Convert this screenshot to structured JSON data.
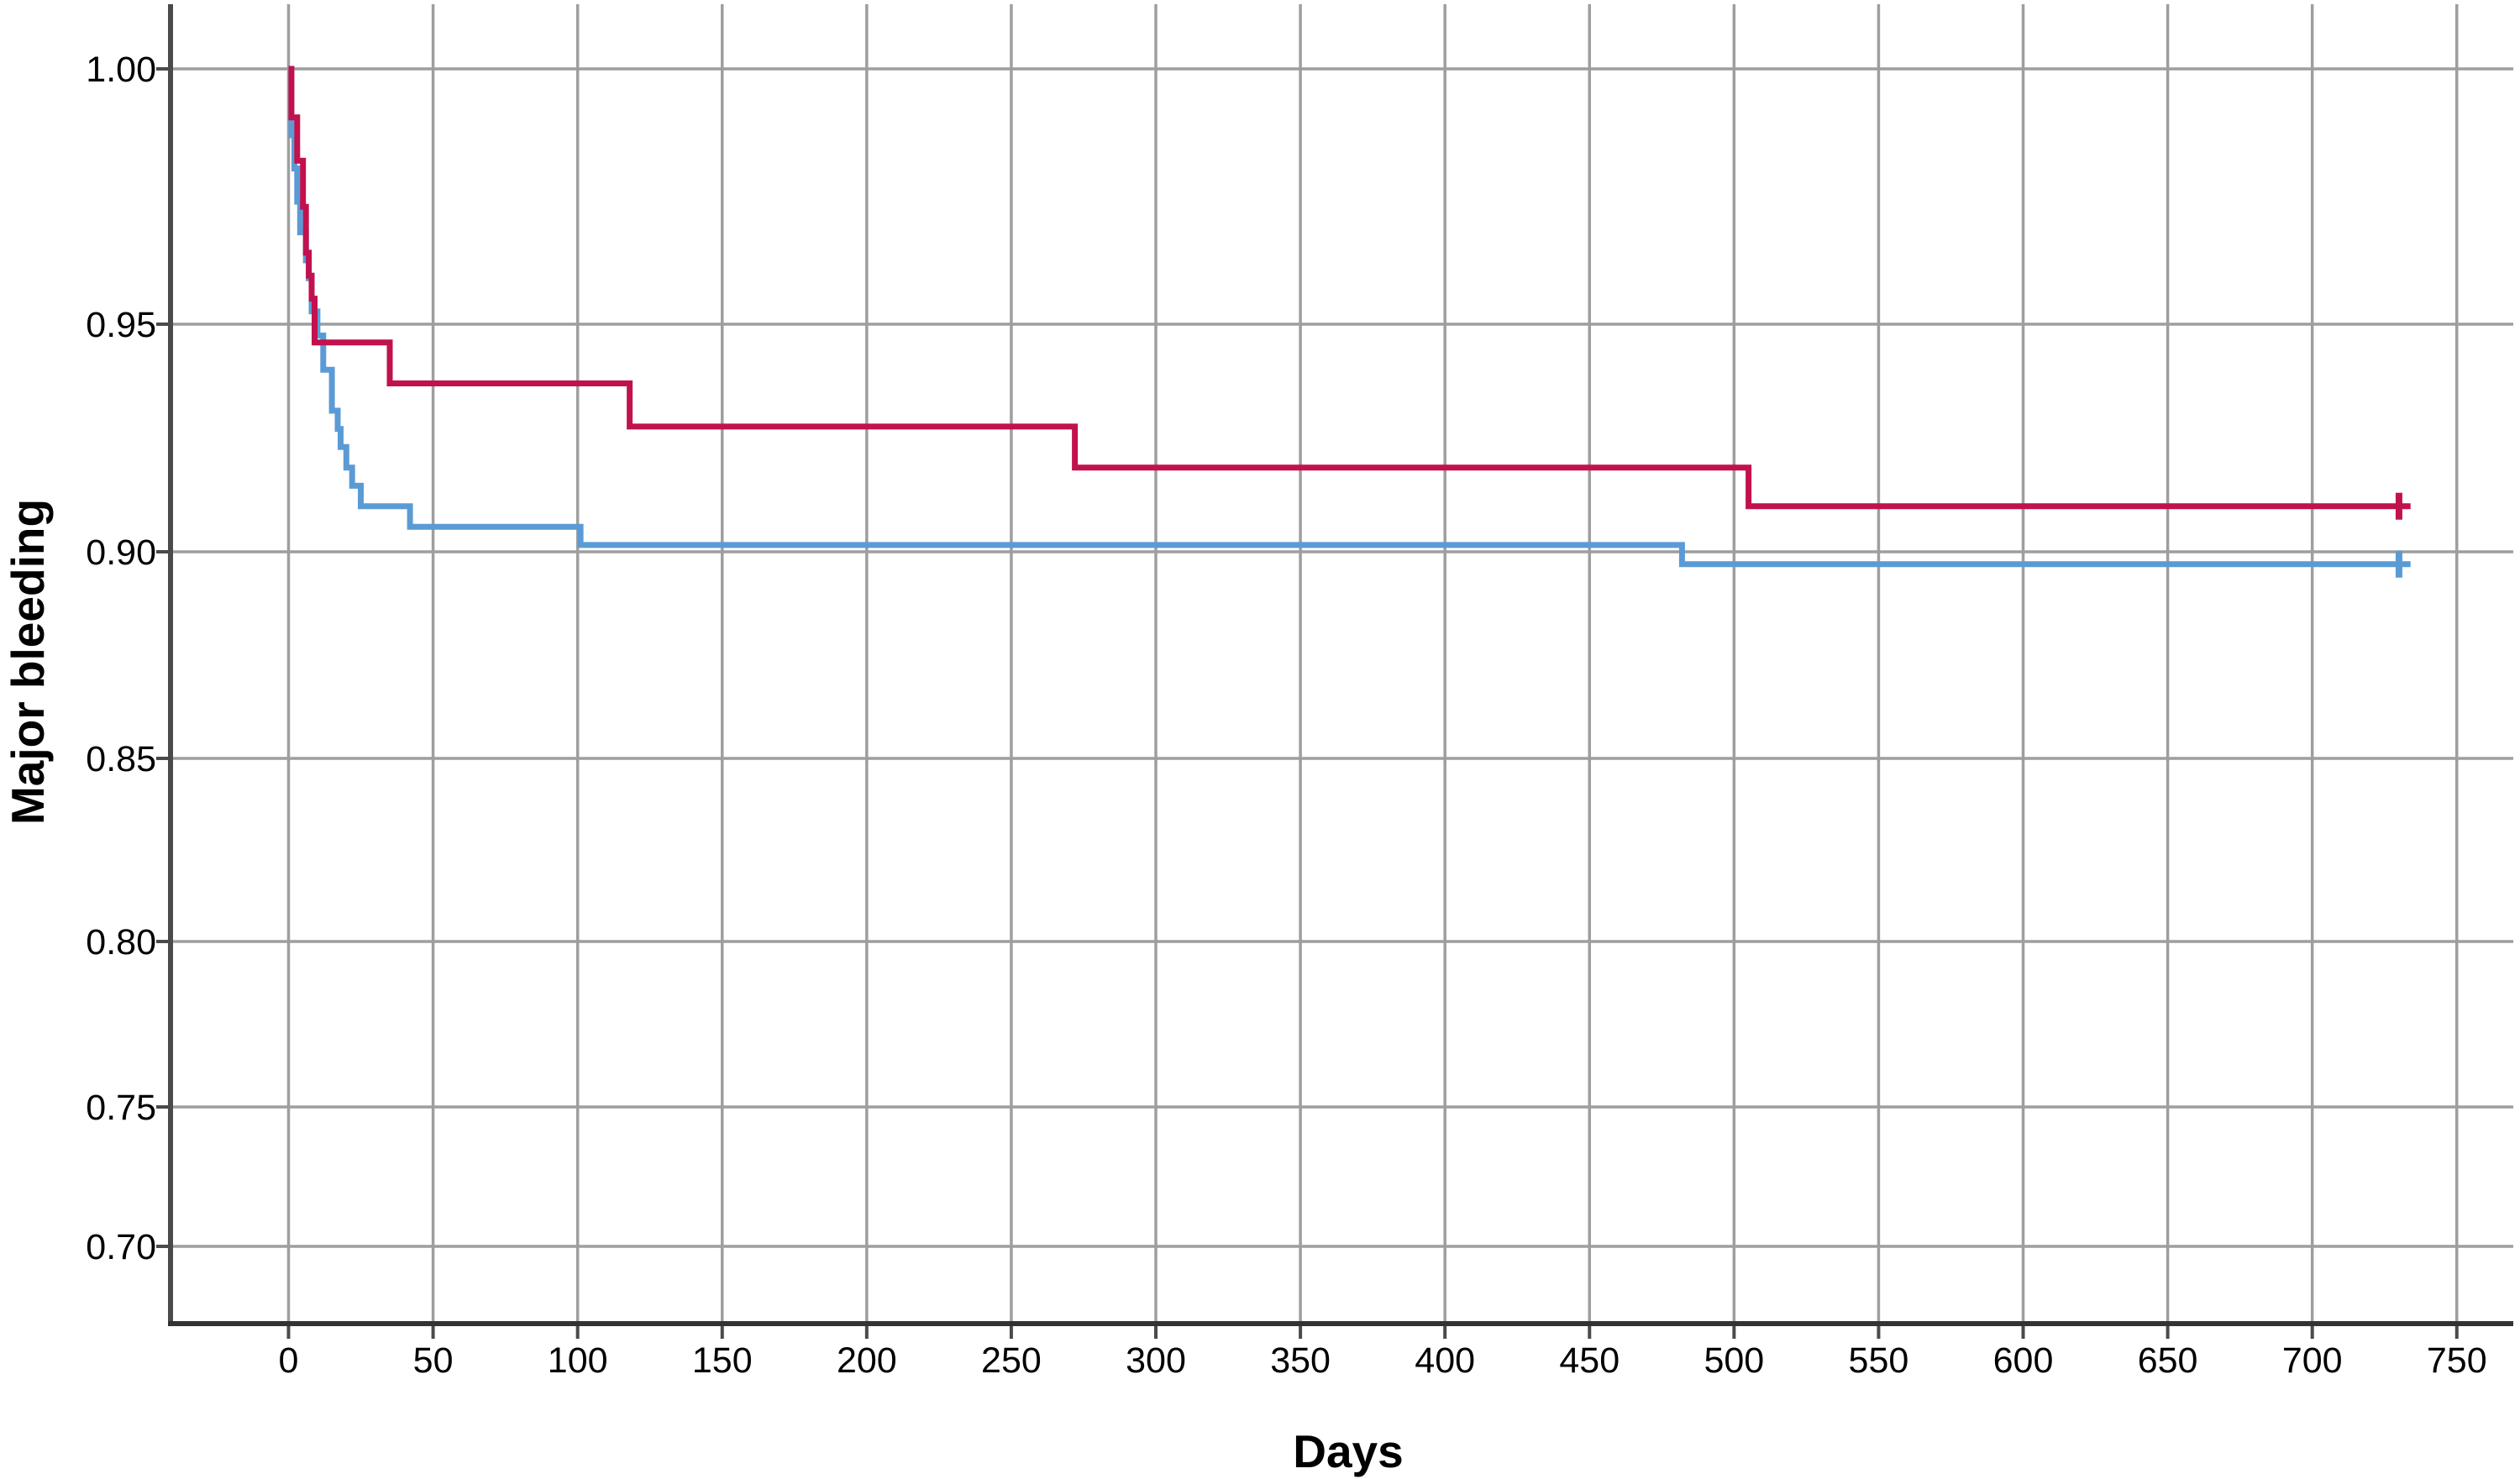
{
  "chart_data": {
    "type": "line",
    "subtype": "kaplan-meier-step",
    "title": "",
    "xlabel": "Days",
    "ylabel": "Major bleeding",
    "x_ticks": [
      0,
      50,
      100,
      150,
      200,
      250,
      300,
      350,
      400,
      450,
      500,
      550,
      600,
      650,
      700,
      750
    ],
    "y_tick_labels": [
      "1.00",
      "0.95",
      "0.90",
      "0.85",
      "0.80",
      "0.75",
      "0.70"
    ],
    "xlim": [
      -41,
      770
    ],
    "ylim": [
      0.69,
      1.005
    ],
    "grid": true,
    "legend": "none",
    "colors": {
      "grid": "#9E9E9E",
      "axis": "#4A4A4A",
      "text": "#000000",
      "background": "#FFFFFF"
    },
    "series": [
      {
        "name": "blue-curve",
        "color": "#5B9BD5",
        "stroke_width": 7,
        "points": [
          [
            0,
            1.0
          ],
          [
            1,
            0.987
          ],
          [
            2,
            0.9805
          ],
          [
            3,
            0.974
          ],
          [
            4,
            0.968
          ],
          [
            6,
            0.9625
          ],
          [
            7,
            0.959
          ],
          [
            8,
            0.9525
          ],
          [
            10,
            0.9475
          ],
          [
            12,
            0.94
          ],
          [
            15,
            0.931
          ],
          [
            17,
            0.927
          ],
          [
            18,
            0.923
          ],
          [
            20,
            0.9185
          ],
          [
            22,
            0.9145
          ],
          [
            25,
            0.91
          ],
          [
            42,
            0.9055
          ],
          [
            101,
            0.9015
          ],
          [
            482,
            0.897
          ]
        ],
        "end_day": 734,
        "censor_marks": [
          [
            730,
            0.897
          ]
        ]
      },
      {
        "name": "red-curve",
        "color": "#C1114E",
        "stroke_width": 7,
        "points": [
          [
            0,
            1.0
          ],
          [
            1,
            0.9905
          ],
          [
            3,
            0.982
          ],
          [
            5,
            0.973
          ],
          [
            6,
            0.964
          ],
          [
            7,
            0.9595
          ],
          [
            8,
            0.955
          ],
          [
            9,
            0.946
          ],
          [
            35,
            0.937
          ],
          [
            118,
            0.9275
          ],
          [
            272,
            0.9185
          ],
          [
            505,
            0.91
          ]
        ],
        "end_day": 734,
        "censor_marks": [
          [
            730,
            0.91
          ]
        ]
      }
    ]
  }
}
